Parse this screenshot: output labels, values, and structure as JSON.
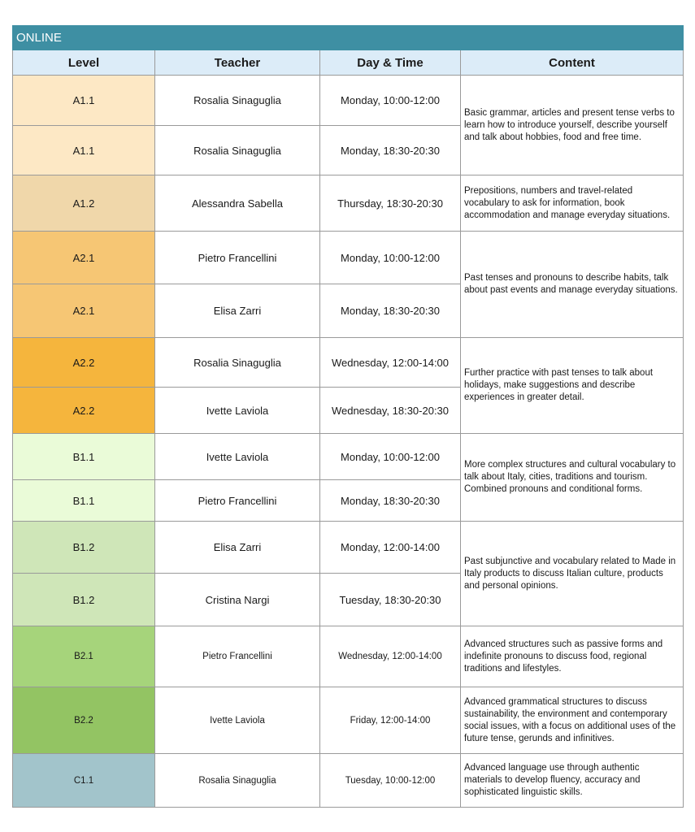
{
  "banner": "ONLINE",
  "headers": {
    "level": "Level",
    "teacher": "Teacher",
    "day_time": "Day & Time",
    "content": "Content"
  },
  "colors": {
    "banner": "#3e8fa3",
    "header": "#dcecf8",
    "A1.1": "#fde8c5",
    "A1.2": "#f0d7aa",
    "A2.1": "#f6c674",
    "A2.2": "#f5b53d",
    "B1.1": "#eafbd8",
    "B1.2": "#cfe6b8",
    "B2.1": "#a6d47b",
    "B2.2": "#93c463",
    "C1.1": "#a2c4cb"
  },
  "rows": [
    {
      "level": "A1.1",
      "teacher": "Rosalia Sinaguglia",
      "day_time": "Monday, 10:00-12:00"
    },
    {
      "level": "A1.1",
      "teacher": "Rosalia Sinaguglia",
      "day_time": "Monday, 18:30-20:30"
    },
    {
      "level": "A1.2",
      "teacher": "Alessandra Sabella",
      "day_time": "Thursday, 18:30-20:30"
    },
    {
      "level": "A2.1",
      "teacher": "Pietro Francellini",
      "day_time": "Monday, 10:00-12:00"
    },
    {
      "level": "A2.1",
      "teacher": "Elisa Zarri",
      "day_time": "Monday, 18:30-20:30"
    },
    {
      "level": "A2.2",
      "teacher": "Rosalia Sinaguglia",
      "day_time": "Wednesday, 12:00-14:00"
    },
    {
      "level": "A2.2",
      "teacher": "Ivette Laviola",
      "day_time": "Wednesday, 18:30-20:30"
    },
    {
      "level": "B1.1",
      "teacher": "Ivette Laviola",
      "day_time": "Monday, 10:00-12:00"
    },
    {
      "level": "B1.1",
      "teacher": "Pietro Francellini",
      "day_time": "Monday, 18:30-20:30"
    },
    {
      "level": "B1.2",
      "teacher": "Elisa Zarri",
      "day_time": "Monday, 12:00-14:00"
    },
    {
      "level": "B1.2",
      "teacher": "Cristina Nargi",
      "day_time": "Tuesday, 18:30-20:30"
    },
    {
      "level": "B2.1",
      "teacher": "Pietro Francellini",
      "day_time": "Wednesday, 12:00-14:00"
    },
    {
      "level": "B2.2",
      "teacher": "Ivette Laviola",
      "day_time": "Friday, 12:00-14:00"
    },
    {
      "level": "C1.1",
      "teacher": "Rosalia Sinaguglia",
      "day_time": "Tuesday, 10:00-12:00"
    }
  ],
  "contents": [
    "Basic grammar, articles and present tense verbs to learn how to introduce yourself, describe yourself and talk about hobbies, food and free time.",
    "Prepositions, numbers and travel-related vocabulary to ask for information, book accommodation and manage everyday situations.",
    "Past tenses and pronouns to describe habits, talk about past events and manage everyday situations.",
    "Further practice with past tenses to talk about holidays, make suggestions and describe experiences in greater detail.",
    "More complex structures and cultural vocabulary to talk about Italy, cities, traditions and tourism. Combined pronouns and conditional forms.",
    "Past subjunctive and vocabulary related to Made in Italy products to discuss Italian culture, products and personal opinions.",
    "Advanced structures such as passive forms and indefinite pronouns to discuss food, regional traditions and lifestyles.",
    "Advanced grammatical structures to discuss sustainability, the environment and contemporary social issues, with a focus on additional uses of the future tense, gerunds and infinitives.",
    "Advanced language use through authentic materials to develop fluency, accuracy and sophisticated linguistic skills."
  ]
}
